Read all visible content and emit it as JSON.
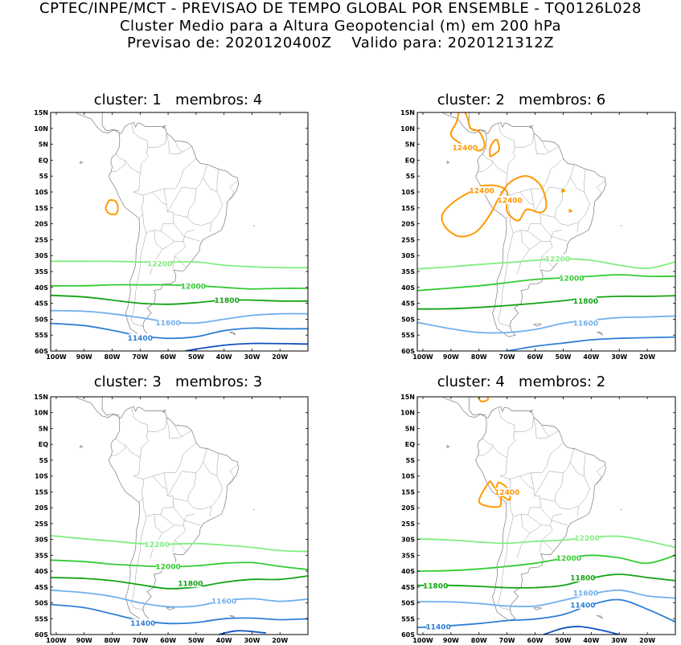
{
  "header": {
    "line1": "CPTEC/INPE/MCT - PREVISAO DE TEMPO GLOBAL POR ENSEMBLE - TQ0126L028",
    "line2": "Cluster Medio para a Altura Geopotencial (m) em 200 hPa",
    "line3": "Previsao de: 2020120400Z    Valido para: 2020121312Z"
  },
  "axes": {
    "lat_labels": [
      "15N",
      "10N",
      "5N",
      "EQ",
      "5S",
      "10S",
      "15S",
      "20S",
      "25S",
      "30S",
      "35S",
      "40S",
      "45S",
      "50S",
      "55S",
      "60S"
    ],
    "lon_labels": [
      "100W",
      "90W",
      "80W",
      "70W",
      "60W",
      "50W",
      "40W",
      "30W",
      "20W"
    ]
  },
  "colors": {
    "c12400": "#ff9900",
    "c12200": "#80ee80",
    "c12000": "#33cc33",
    "c11800": "#13a313",
    "c11600": "#70b0ee",
    "c11400": "#2e7fd6",
    "c11200": "#1050c0"
  },
  "panels": [
    {
      "title": "cluster: 1   membros: 4",
      "labels": {
        "l12200": "12200",
        "l12000": "12000",
        "l11800": "11800",
        "l11600": "11600",
        "l11400": "11400"
      }
    },
    {
      "title": "cluster: 2   membros: 6",
      "labels": {
        "l12400a": "12400",
        "l12400b": "12400",
        "l12400c": "12400",
        "l12200": "12200",
        "l12000": "12000",
        "l11800": "11800",
        "l11600": "11600"
      }
    },
    {
      "title": "cluster: 3   membros: 3",
      "labels": {
        "l12200": "12200",
        "l12000": "12000",
        "l11800": "11800",
        "l11600": "11600",
        "l11400": "11400"
      }
    },
    {
      "title": "cluster: 4   membros: 2",
      "labels": {
        "l12400": "12400",
        "l12200": "12200",
        "l12000": "12000",
        "l11800a": "11800",
        "l11800b": "11800",
        "l11600": "11600",
        "l11400a": "11400",
        "l11400b": "11400"
      }
    }
  ]
}
